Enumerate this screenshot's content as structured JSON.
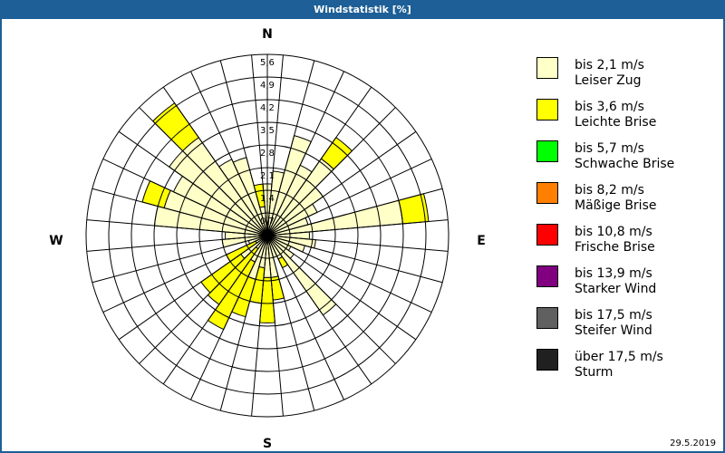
{
  "window": {
    "title": "Windstatistik [%]"
  },
  "footer": {
    "date": "29.5.2019"
  },
  "compass": {
    "N": "N",
    "E": "E",
    "S": "S",
    "W": "W"
  },
  "legend": [
    {
      "range": "bis 2,1 m/s",
      "name": "Leiser Zug",
      "color": "#ffffc8"
    },
    {
      "range": "bis 3,6 m/s",
      "name": "Leichte Brise",
      "color": "#ffff00"
    },
    {
      "range": "bis 5,7 m/s",
      "name": "Schwache Brise",
      "color": "#00ff00"
    },
    {
      "range": "bis 8,2 m/s",
      "name": "Mäßige Brise",
      "color": "#ff8000"
    },
    {
      "range": "bis 10,8 m/s",
      "name": "Frische Brise",
      "color": "#ff0000"
    },
    {
      "range": "bis 13,9 m/s",
      "name": "Starker Wind",
      "color": "#800080"
    },
    {
      "range": "bis 17,5 m/s",
      "name": "Steifer Wind",
      "color": "#606060"
    },
    {
      "range": "über 17,5 m/s",
      "name": "Sturm",
      "color": "#202020"
    }
  ],
  "chart_data": {
    "type": "polar-bar (wind rose)",
    "title": "Windstatistik [%]",
    "radial_axis": {
      "unit": "%",
      "ticks": [
        "0,7",
        "1,4",
        "2,1",
        "2,8",
        "3,5",
        "4,2",
        "4,9",
        "5,6"
      ],
      "max": 5.6
    },
    "sector_width_deg": 10,
    "directions_deg": [
      0,
      10,
      20,
      30,
      40,
      50,
      60,
      70,
      80,
      90,
      100,
      110,
      120,
      130,
      140,
      150,
      160,
      170,
      180,
      190,
      200,
      210,
      220,
      230,
      240,
      250,
      260,
      270,
      280,
      290,
      300,
      310,
      320,
      330,
      340,
      350
    ],
    "series": [
      {
        "name": "bis 2,1 m/s Leiser Zug",
        "values": [
          1.6,
          2.0,
          3.2,
          2.4,
          2.9,
          2.1,
          1.7,
          1.3,
          4.2,
          1.3,
          1.5,
          1.2,
          0.8,
          1.0,
          3.0,
          0.8,
          0.7,
          1.3,
          1.3,
          1.0,
          1.4,
          0.9,
          0.5,
          1.0,
          0.4,
          0.6,
          1.4,
          1.3,
          3.5,
          3.3,
          3.2,
          3.7,
          3.7,
          2.6,
          2.5,
          0.9
        ]
      },
      {
        "name": "bis 3,6 m/s Leichte Brise",
        "values": [
          0,
          0,
          0,
          0,
          0.8,
          0,
          0,
          0,
          0.8,
          0,
          0,
          0,
          0,
          0,
          0,
          0.3,
          0,
          0.7,
          1.4,
          1.1,
          1.2,
          2.3,
          2.1,
          1.5,
          1.0,
          0,
          0,
          0,
          0,
          0.7,
          0,
          0,
          1.3,
          0,
          0,
          0.7
        ]
      }
    ]
  }
}
